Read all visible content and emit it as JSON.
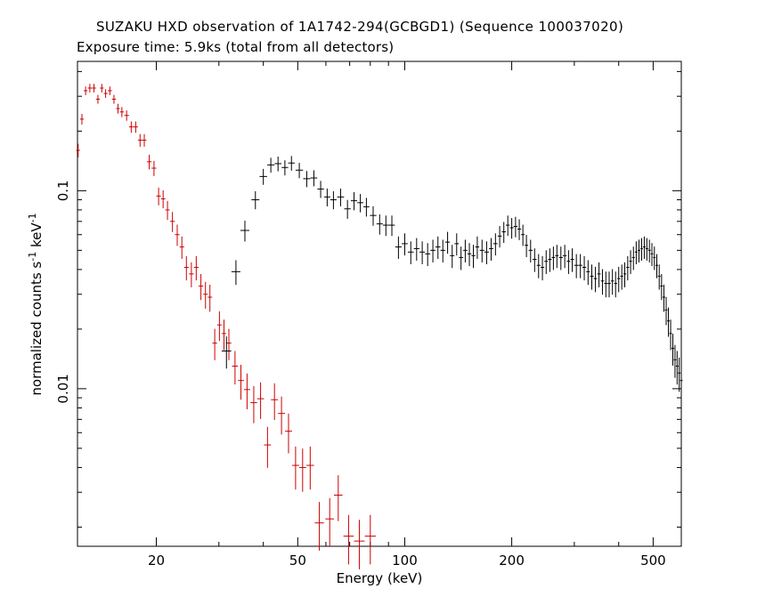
{
  "title": "SUZAKU HXD observation of 1A1742-294(GCBGD1) (Sequence 100037020)",
  "subtitle": "Exposure time: 5.9ks (total from all detectors)",
  "chart_data": {
    "type": "scatter",
    "xlabel": "Energy (keV)",
    "ylabel_main": "normalized counts s",
    "ylabel_sup1": "-1",
    "ylabel_mid": " keV",
    "ylabel_sup2": "-1",
    "x_scale": "log",
    "y_scale": "log",
    "xlim": [
      12,
      600
    ],
    "ylim": [
      0.0016,
      0.45
    ],
    "grid": false,
    "x_ticks": [
      {
        "value": 20,
        "label": "20"
      },
      {
        "value": 50,
        "label": "50"
      },
      {
        "value": 100,
        "label": "100"
      },
      {
        "value": 200,
        "label": "200"
      },
      {
        "value": 500,
        "label": "500"
      }
    ],
    "y_ticks": [
      {
        "value": 0.1,
        "label": "0.1"
      },
      {
        "value": 0.01,
        "label": "0.01"
      }
    ],
    "series": [
      {
        "color": "#cc0000",
        "points": [
          [
            12.05,
            0.16
          ],
          [
            12.35,
            0.23
          ],
          [
            12.65,
            0.32
          ],
          [
            13.0,
            0.33
          ],
          [
            13.35,
            0.33
          ],
          [
            13.7,
            0.29
          ],
          [
            14.05,
            0.33
          ],
          [
            14.4,
            0.31
          ],
          [
            14.8,
            0.32
          ],
          [
            15.2,
            0.29
          ],
          [
            15.6,
            0.26
          ],
          [
            16.0,
            0.25
          ],
          [
            16.5,
            0.24
          ],
          [
            17.0,
            0.21
          ],
          [
            17.5,
            0.21
          ],
          [
            18.0,
            0.18
          ],
          [
            18.5,
            0.18
          ],
          [
            19.1,
            0.14
          ],
          [
            19.7,
            0.13
          ],
          [
            20.3,
            0.094
          ],
          [
            20.9,
            0.091
          ],
          [
            21.5,
            0.08
          ],
          [
            22.2,
            0.07
          ],
          [
            22.9,
            0.06
          ],
          [
            23.6,
            0.052
          ],
          [
            24.3,
            0.041
          ],
          [
            25.1,
            0.038
          ],
          [
            25.9,
            0.041
          ],
          [
            26.7,
            0.033
          ],
          [
            27.5,
            0.03
          ],
          [
            28.3,
            0.029
          ],
          [
            29.2,
            0.017
          ],
          [
            30.1,
            0.021
          ],
          [
            31.0,
            0.019
          ],
          [
            32.0,
            0.017
          ],
          [
            33.3,
            0.013
          ],
          [
            34.6,
            0.011
          ],
          [
            36.0,
            0.0099
          ],
          [
            37.6,
            0.0085
          ],
          [
            39.3,
            0.0089
          ],
          [
            41.1,
            0.0052
          ],
          [
            43.0,
            0.0088
          ],
          [
            45.0,
            0.0075
          ],
          [
            47.1,
            0.0061
          ],
          [
            49.3,
            0.0041
          ],
          [
            51.6,
            0.004
          ],
          [
            54.2,
            0.0041
          ],
          [
            57.5,
            0.0021
          ],
          [
            61.5,
            0.0022
          ],
          [
            65.0,
            0.0029
          ],
          [
            69.5,
            0.0018
          ],
          [
            74.5,
            0.0017
          ],
          [
            80.0,
            0.0018
          ]
        ]
      },
      {
        "color": "#000000",
        "points": [
          [
            31.5,
            0.0155
          ],
          [
            33.5,
            0.039
          ],
          [
            35.5,
            0.063
          ],
          [
            38.0,
            0.09
          ],
          [
            40.0,
            0.118
          ],
          [
            42.0,
            0.135
          ],
          [
            44.0,
            0.137
          ],
          [
            46.0,
            0.131
          ],
          [
            48.0,
            0.138
          ],
          [
            50.5,
            0.127
          ],
          [
            53.0,
            0.115
          ],
          [
            55.5,
            0.116
          ],
          [
            58.0,
            0.102
          ],
          [
            60.5,
            0.093
          ],
          [
            63.0,
            0.09
          ],
          [
            66.0,
            0.093
          ],
          [
            69.0,
            0.081
          ],
          [
            72.0,
            0.089
          ],
          [
            75.0,
            0.087
          ],
          [
            78.0,
            0.083
          ],
          [
            81.5,
            0.075
          ],
          [
            85.0,
            0.068
          ],
          [
            88.5,
            0.067
          ],
          [
            92.0,
            0.067
          ],
          [
            96.0,
            0.052
          ],
          [
            100.0,
            0.054
          ],
          [
            104.0,
            0.049
          ],
          [
            108.0,
            0.051
          ],
          [
            112.0,
            0.049
          ],
          [
            116.0,
            0.048
          ],
          [
            120.0,
            0.05
          ],
          [
            124.0,
            0.052
          ],
          [
            128.0,
            0.05
          ],
          [
            132.0,
            0.055
          ],
          [
            136.0,
            0.047
          ],
          [
            140.0,
            0.054
          ],
          [
            144.0,
            0.046
          ],
          [
            148.0,
            0.05
          ],
          [
            152.0,
            0.048
          ],
          [
            156.0,
            0.047
          ],
          [
            160.0,
            0.052
          ],
          [
            165.0,
            0.05
          ],
          [
            170.0,
            0.049
          ],
          [
            175.0,
            0.051
          ],
          [
            180.0,
            0.054
          ],
          [
            185.0,
            0.059
          ],
          [
            190.0,
            0.062
          ],
          [
            195.0,
            0.067
          ],
          [
            200.0,
            0.065
          ],
          [
            205.0,
            0.066
          ],
          [
            210.0,
            0.064
          ],
          [
            215.0,
            0.06
          ],
          [
            220.0,
            0.053
          ],
          [
            226.0,
            0.05
          ],
          [
            232.0,
            0.045
          ],
          [
            238.0,
            0.042
          ],
          [
            244.0,
            0.041
          ],
          [
            250.0,
            0.044
          ],
          [
            256.0,
            0.045
          ],
          [
            262.0,
            0.046
          ],
          [
            268.0,
            0.047
          ],
          [
            275.0,
            0.046
          ],
          [
            282.0,
            0.047
          ],
          [
            289.0,
            0.044
          ],
          [
            296.0,
            0.045
          ],
          [
            304.0,
            0.042
          ],
          [
            312.0,
            0.042
          ],
          [
            320.0,
            0.041
          ],
          [
            328.0,
            0.039
          ],
          [
            336.0,
            0.037
          ],
          [
            344.0,
            0.036
          ],
          [
            352.0,
            0.038
          ],
          [
            360.0,
            0.035
          ],
          [
            368.0,
            0.034
          ],
          [
            376.0,
            0.034
          ],
          [
            384.0,
            0.035
          ],
          [
            392.0,
            0.034
          ],
          [
            400.0,
            0.036
          ],
          [
            408.0,
            0.037
          ],
          [
            416.0,
            0.038
          ],
          [
            424.0,
            0.041
          ],
          [
            432.0,
            0.044
          ],
          [
            440.0,
            0.046
          ],
          [
            448.0,
            0.049
          ],
          [
            456.0,
            0.05
          ],
          [
            464.0,
            0.051
          ],
          [
            472.0,
            0.052
          ],
          [
            480.0,
            0.051
          ],
          [
            488.0,
            0.05
          ],
          [
            496.0,
            0.048
          ],
          [
            504.0,
            0.046
          ],
          [
            512.0,
            0.042
          ],
          [
            520.0,
            0.037
          ],
          [
            528.0,
            0.033
          ],
          [
            536.0,
            0.029
          ],
          [
            544.0,
            0.025
          ],
          [
            552.0,
            0.022
          ],
          [
            560.0,
            0.019
          ],
          [
            568.0,
            0.016
          ],
          [
            576.0,
            0.014
          ],
          [
            584.0,
            0.013
          ],
          [
            592.0,
            0.012
          ],
          [
            600.0,
            0.011
          ]
        ]
      }
    ]
  }
}
